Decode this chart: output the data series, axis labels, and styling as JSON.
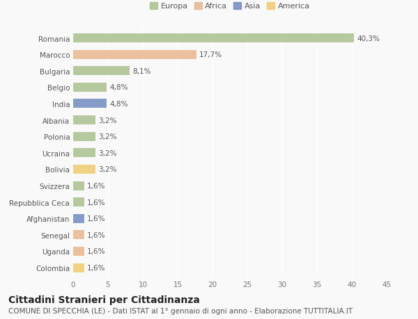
{
  "countries": [
    "Romania",
    "Marocco",
    "Bulgaria",
    "Belgio",
    "India",
    "Albania",
    "Polonia",
    "Ucraina",
    "Bolivia",
    "Svizzera",
    "Repubblica Ceca",
    "Afghanistan",
    "Senegal",
    "Uganda",
    "Colombia"
  ],
  "values": [
    40.3,
    17.7,
    8.1,
    4.8,
    4.8,
    3.2,
    3.2,
    3.2,
    3.2,
    1.6,
    1.6,
    1.6,
    1.6,
    1.6,
    1.6
  ],
  "labels": [
    "40,3%",
    "17,7%",
    "8,1%",
    "4,8%",
    "4,8%",
    "3,2%",
    "3,2%",
    "3,2%",
    "3,2%",
    "1,6%",
    "1,6%",
    "1,6%",
    "1,6%",
    "1,6%",
    "1,6%"
  ],
  "colors": [
    "#a8bf8a",
    "#e8b48a",
    "#a8bf8a",
    "#a8bf8a",
    "#6b88bc",
    "#a8bf8a",
    "#a8bf8a",
    "#a8bf8a",
    "#f0c96a",
    "#a8bf8a",
    "#a8bf8a",
    "#6b88bc",
    "#e8b48a",
    "#e8b48a",
    "#f0c96a"
  ],
  "legend_labels": [
    "Europa",
    "Africa",
    "Asia",
    "America"
  ],
  "legend_colors": [
    "#a8bf8a",
    "#e8b48a",
    "#6b88bc",
    "#f0c96a"
  ],
  "xlim": [
    0,
    45
  ],
  "xticks": [
    0,
    5,
    10,
    15,
    20,
    25,
    30,
    35,
    40,
    45
  ],
  "title": "Cittadini Stranieri per Cittadinanza",
  "subtitle": "COMUNE DI SPECCHIA (LE) - Dati ISTAT al 1° gennaio di ogni anno - Elaborazione TUTTITALIA.IT",
  "background_color": "#f9f9f9",
  "bar_height": 0.55,
  "title_fontsize": 10,
  "subtitle_fontsize": 7.5,
  "label_fontsize": 7.5,
  "tick_fontsize": 7.5,
  "legend_fontsize": 8
}
